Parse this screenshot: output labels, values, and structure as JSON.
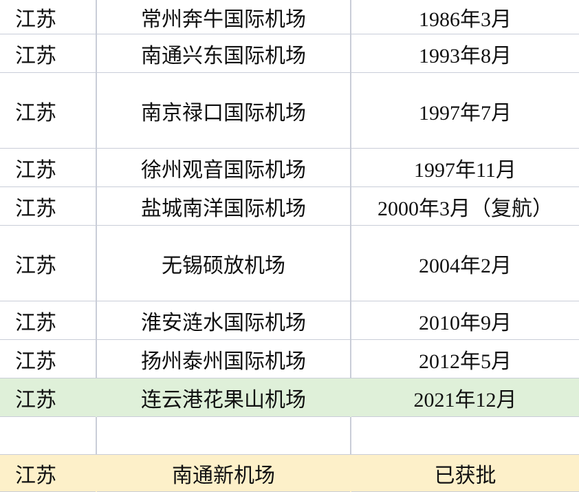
{
  "rows": [
    {
      "province": "江苏",
      "airport": "常州奔牛国际机场",
      "date": "1986年3月"
    },
    {
      "province": "江苏",
      "airport": "南通兴东国际机场",
      "date": "1993年8月"
    },
    {
      "province": "江苏",
      "airport": "南京禄口国际机场",
      "date": "1997年7月"
    },
    {
      "province": "江苏",
      "airport": "徐州观音国际机场",
      "date": "1997年11月"
    },
    {
      "province": "江苏",
      "airport": "盐城南洋国际机场",
      "date": "2000年3月（复航）"
    },
    {
      "province": "江苏",
      "airport": "无锡硕放机场",
      "date": "2004年2月"
    },
    {
      "province": "江苏",
      "airport": "淮安涟水国际机场",
      "date": "2010年9月"
    },
    {
      "province": "江苏",
      "airport": "扬州泰州国际机场",
      "date": "2012年5月"
    },
    {
      "province": "江苏",
      "airport": "连云港花果山机场",
      "date": "2021年12月"
    },
    {
      "province": "",
      "airport": "",
      "date": ""
    },
    {
      "province": "江苏",
      "airport": "南通新机场",
      "date": "已获批"
    }
  ],
  "colors": {
    "highlight_green": "#dff0d9",
    "highlight_yellow": "#fdf0c9",
    "grid": "#c9cdd8"
  }
}
